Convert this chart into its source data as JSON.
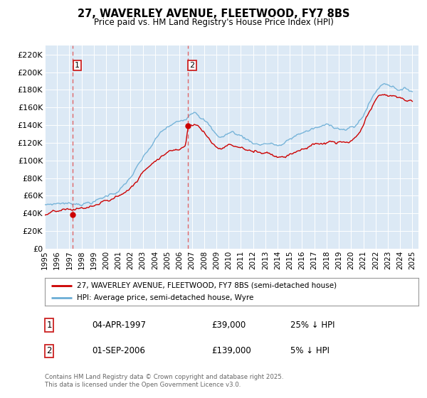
{
  "title": "27, WAVERLEY AVENUE, FLEETWOOD, FY7 8BS",
  "subtitle": "Price paid vs. HM Land Registry's House Price Index (HPI)",
  "background_color": "#ffffff",
  "plot_bg_color": "#dce9f5",
  "grid_color": "#ffffff",
  "xlim": [
    1995.0,
    2025.5
  ],
  "ylim": [
    0,
    230000
  ],
  "yticks": [
    0,
    20000,
    40000,
    60000,
    80000,
    100000,
    120000,
    140000,
    160000,
    180000,
    200000,
    220000
  ],
  "ytick_labels": [
    "£0",
    "£20K",
    "£40K",
    "£60K",
    "£80K",
    "£100K",
    "£120K",
    "£140K",
    "£160K",
    "£180K",
    "£200K",
    "£220K"
  ],
  "xticks": [
    1995,
    1996,
    1997,
    1998,
    1999,
    2000,
    2001,
    2002,
    2003,
    2004,
    2005,
    2006,
    2007,
    2008,
    2009,
    2010,
    2011,
    2012,
    2013,
    2014,
    2015,
    2016,
    2017,
    2018,
    2019,
    2020,
    2021,
    2022,
    2023,
    2024,
    2025
  ],
  "sale1_x": 1997.27,
  "sale1_y": 39000,
  "sale2_x": 2006.67,
  "sale2_y": 139000,
  "vline1_x": 1997.27,
  "vline2_x": 2006.67,
  "sale_color": "#cc0000",
  "hpi_color": "#6baed6",
  "vline_color": "#e05050",
  "legend1_label": "27, WAVERLEY AVENUE, FLEETWOOD, FY7 8BS (semi-detached house)",
  "legend2_label": "HPI: Average price, semi-detached house, Wyre",
  "sale1_date": "04-APR-1997",
  "sale1_price": "£39,000",
  "sale1_hpi": "25% ↓ HPI",
  "sale2_date": "01-SEP-2006",
  "sale2_price": "£139,000",
  "sale2_hpi": "5% ↓ HPI",
  "footer_text": "Contains HM Land Registry data © Crown copyright and database right 2025.\nThis data is licensed under the Open Government Licence v3.0."
}
